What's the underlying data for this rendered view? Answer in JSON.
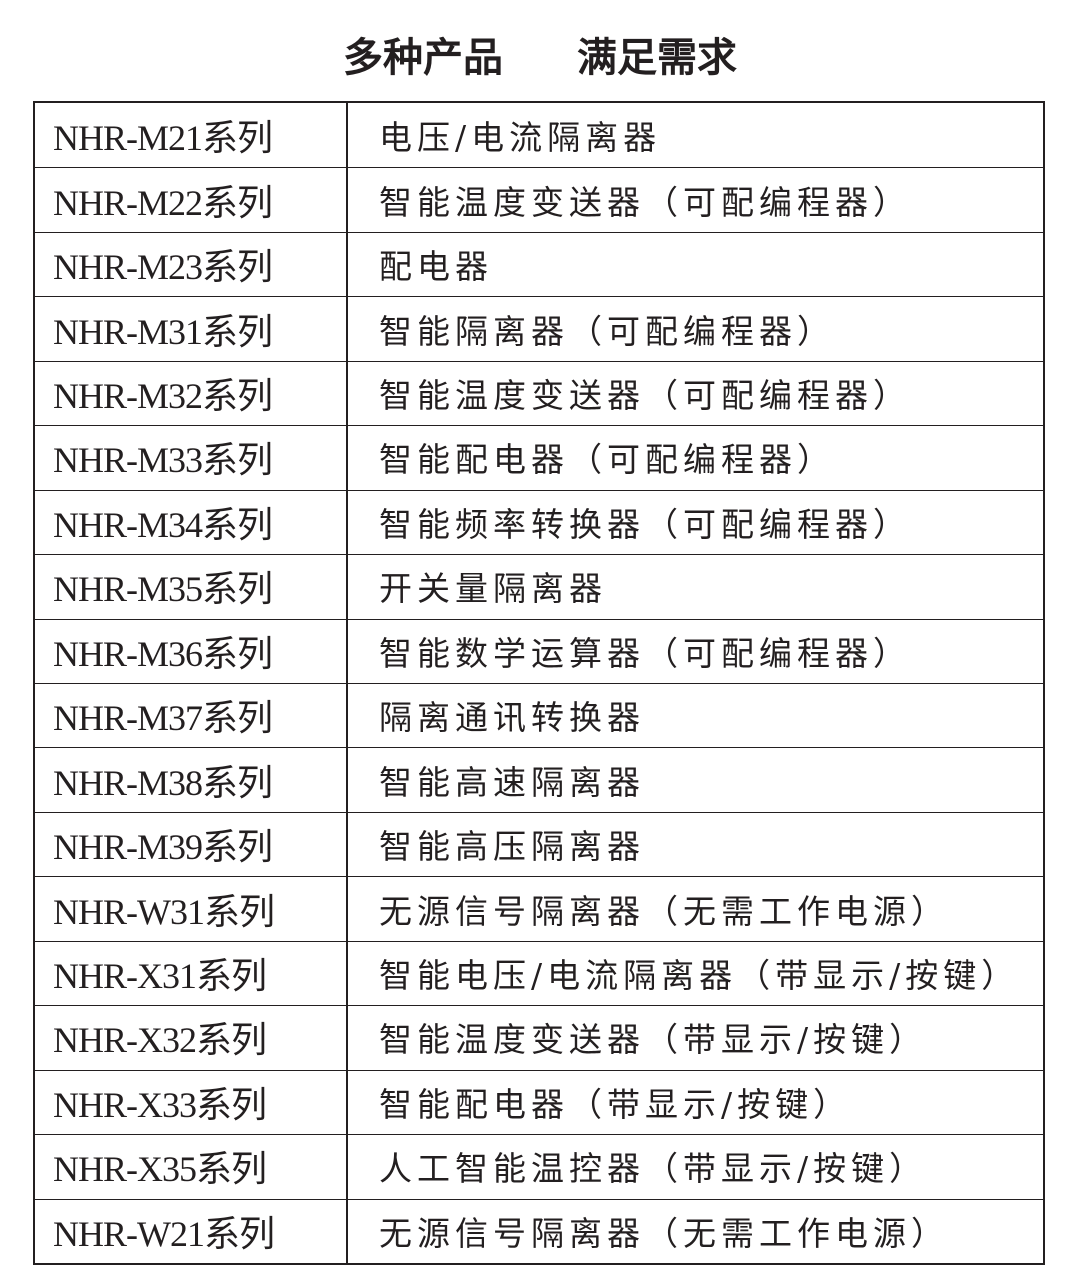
{
  "header": {
    "title": [
      "多种产品",
      "满足需求"
    ]
  },
  "table": {
    "rows": [
      [
        "NHR-M21系列",
        "电压/电流隔离器"
      ],
      [
        "NHR-M22系列",
        "智能温度变送器（可配编程器）"
      ],
      [
        "NHR-M23系列",
        "配电器"
      ],
      [
        "NHR-M31系列",
        "智能隔离器（可配编程器）"
      ],
      [
        "NHR-M32系列",
        "智能温度变送器（可配编程器）"
      ],
      [
        "NHR-M33系列",
        "智能配电器（可配编程器）"
      ],
      [
        "NHR-M34系列",
        "智能频率转换器（可配编程器）"
      ],
      [
        "NHR-M35系列",
        "开关量隔离器"
      ],
      [
        "NHR-M36系列",
        "智能数学运算器（可配编程器）"
      ],
      [
        "NHR-M37系列",
        "隔离通讯转换器"
      ],
      [
        "NHR-M38系列",
        "智能高速隔离器"
      ],
      [
        "NHR-M39系列",
        "智能高压隔离器"
      ],
      [
        "NHR-W31系列",
        "无源信号隔离器（无需工作电源）"
      ],
      [
        "NHR-X31系列",
        "智能电压/电流隔离器（带显示/按键）"
      ],
      [
        "NHR-X32系列",
        "智能温度变送器（带显示/按键）"
      ],
      [
        "NHR-X33系列",
        "智能配电器（带显示/按键）"
      ],
      [
        "NHR-X35系列",
        "人工智能温控器（带显示/按键）"
      ],
      [
        "NHR-W21系列",
        "无源信号隔离器（无需工作电源）"
      ]
    ]
  }
}
